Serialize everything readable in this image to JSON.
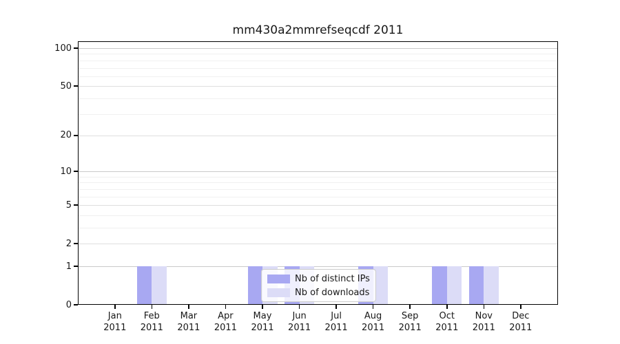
{
  "chart_data": {
    "type": "bar",
    "title": "mm430a2mmrefseqcdf 2011",
    "year": "2011",
    "months": [
      "Jan",
      "Feb",
      "Mar",
      "Apr",
      "May",
      "Jun",
      "Jul",
      "Aug",
      "Sep",
      "Oct",
      "Nov",
      "Dec"
    ],
    "series": [
      {
        "name": "Nb of distinct IPs",
        "color": "#a8a8f2",
        "values": [
          0,
          1,
          0,
          0,
          1,
          1,
          0,
          1,
          0,
          1,
          1,
          0
        ]
      },
      {
        "name": "Nb of downloads",
        "color": "#dcdcf7",
        "values": [
          0,
          1,
          0,
          0,
          1,
          1,
          0,
          1,
          0,
          1,
          1,
          0
        ]
      }
    ],
    "y_axis": {
      "scale": "log10(1+y)",
      "labeled_ticks": [
        0,
        1,
        2,
        5,
        10,
        20,
        50,
        100
      ],
      "minor_ticks": [
        3,
        4,
        6,
        7,
        8,
        9,
        30,
        40,
        60,
        70,
        80,
        90
      ],
      "ylim": [
        0,
        113
      ]
    },
    "legend": {
      "position": "lower center",
      "entries": [
        "Nb of distinct IPs",
        "Nb of downloads"
      ]
    }
  },
  "colors": {
    "bar_distinct_ips": "#a8a8f2",
    "bar_downloads": "#dcdcf7",
    "gridline_power10": "#c9c9c9",
    "gridline_labeled": "#dedede",
    "gridline_minor": "#f0f0f0",
    "axis": "#000000",
    "legend_border": "#cccccc"
  }
}
